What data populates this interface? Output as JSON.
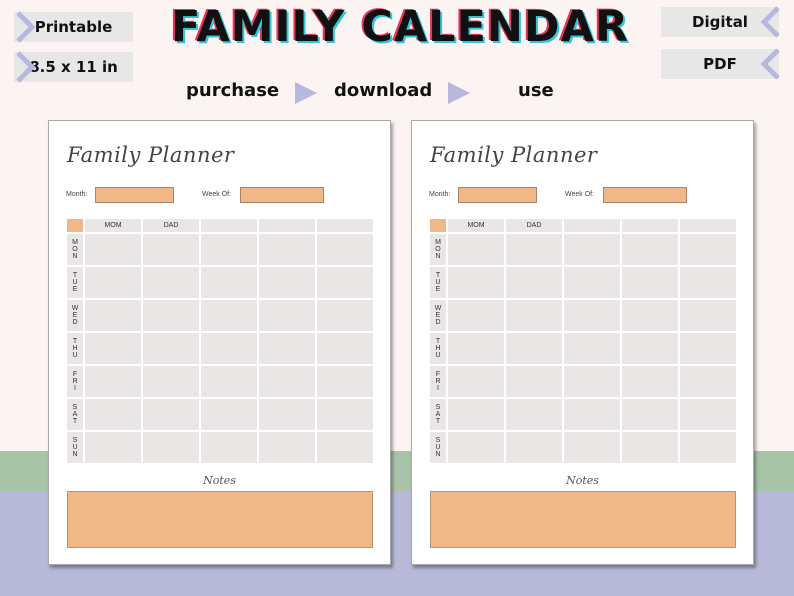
{
  "header": {
    "title": "FAMILY CALENDAR",
    "left_tags": [
      "Printable",
      "8.5 x 11 in"
    ],
    "right_tags": [
      "Digital",
      "PDF"
    ],
    "steps": [
      "purchase",
      "download",
      "use"
    ]
  },
  "colors": {
    "accent_orange": "#f0b887",
    "cell_gray": "#e9e6e5",
    "arrow_lavender": "#b8b8dc",
    "band_green": "#a9c3a9",
    "band_purple": "#b8b8d9"
  },
  "planner": {
    "title": "Family Planner",
    "month_label": "Month:",
    "week_label": "Week Of:",
    "columns": [
      "MOM",
      "DAD",
      "",
      "",
      ""
    ],
    "days": [
      "MON",
      "TUE",
      "WED",
      "THU",
      "FRI",
      "SAT",
      "SUN"
    ],
    "notes_label": "Notes"
  }
}
